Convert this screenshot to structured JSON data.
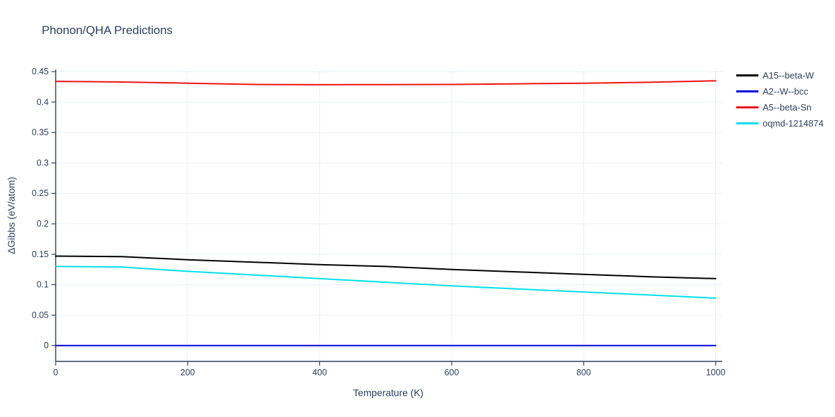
{
  "title": "Phonon/QHA Predictions",
  "colors": {
    "text": "#2a3f5f",
    "grid": "#ebf0f8",
    "axis": "#2a3f5f",
    "background": "#ffffff"
  },
  "chart_data": {
    "type": "line",
    "title": "Phonon/QHA Predictions",
    "xlabel": "Temperature (K)",
    "ylabel": "ΔGibbs (eV/atom)",
    "xlim": [
      0,
      1010
    ],
    "ylim": [
      -0.026,
      0.4535
    ],
    "x_ticks": [
      0,
      200,
      400,
      600,
      800,
      1000
    ],
    "y_ticks": [
      0,
      0.05,
      0.1,
      0.15,
      0.2,
      0.25,
      0.3,
      0.35,
      0.4,
      0.45
    ],
    "grid": true,
    "legend_position": "top-right",
    "x": [
      0,
      100,
      200,
      300,
      400,
      500,
      600,
      700,
      800,
      900,
      1000
    ],
    "series": [
      {
        "name": "A15--beta-W",
        "color": "#000000",
        "values": [
          0.147,
          0.146,
          0.141,
          0.137,
          0.133,
          0.13,
          0.125,
          0.121,
          0.117,
          0.113,
          0.11
        ]
      },
      {
        "name": "A2--W--bcc",
        "color": "#0000dd",
        "values": [
          0,
          0,
          0,
          0,
          0,
          0,
          0,
          0,
          0,
          0,
          0
        ]
      },
      {
        "name": "A5--beta-Sn",
        "color": "#ee1111",
        "values": [
          0.434,
          0.433,
          0.431,
          0.429,
          0.4285,
          0.4287,
          0.429,
          0.43,
          0.431,
          0.4325,
          0.435
        ]
      },
      {
        "name": "oqmd-1214874",
        "color": "#00e0ee",
        "values": [
          0.13,
          0.129,
          0.122,
          0.116,
          0.11,
          0.104,
          0.098,
          0.093,
          0.088,
          0.083,
          0.078
        ]
      }
    ]
  }
}
